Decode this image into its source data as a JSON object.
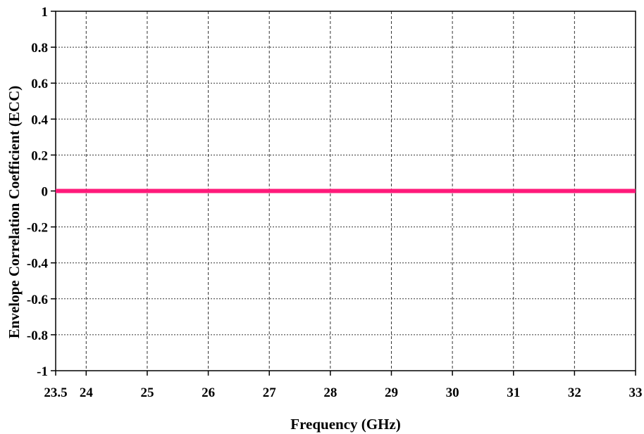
{
  "chart_data": {
    "type": "line",
    "title": "",
    "xlabel": "Frequency (GHz)",
    "ylabel": "Envelope Correlation Coefficient (ECC)",
    "xlim": [
      23.5,
      33
    ],
    "ylim": [
      -1,
      1
    ],
    "x_ticks": [
      23.5,
      24,
      25,
      26,
      27,
      28,
      29,
      30,
      31,
      32,
      33
    ],
    "x_tick_labels": [
      "23.5",
      "24",
      "25",
      "26",
      "27",
      "28",
      "29",
      "30",
      "31",
      "32",
      "33"
    ],
    "y_ticks": [
      1,
      0.8,
      0.6,
      0.4,
      0.2,
      0,
      -0.2,
      -0.4,
      -0.6,
      -0.8,
      -1
    ],
    "y_tick_labels": [
      "1",
      "0.8",
      "0.6",
      "0.4",
      "0.2",
      "0",
      "-0.2",
      "-0.4",
      "-0.6",
      "-0.8",
      "-1"
    ],
    "grid": true,
    "legend": "none",
    "series": [
      {
        "color": "#ff1a7a",
        "x": [
          23.5,
          24,
          25,
          26,
          27,
          28,
          29,
          30,
          31,
          32,
          33
        ],
        "y": [
          0,
          0,
          0,
          0,
          0,
          0,
          0,
          0,
          0,
          0,
          0
        ]
      }
    ]
  }
}
